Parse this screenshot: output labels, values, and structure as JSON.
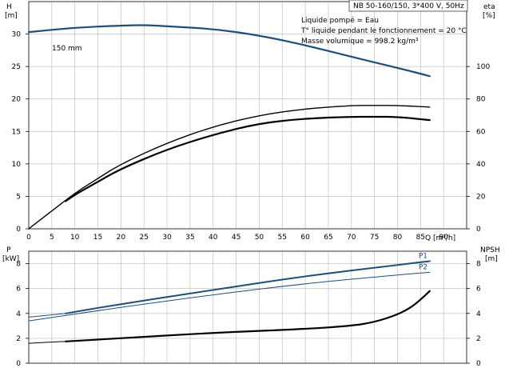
{
  "chart_data": [
    {
      "type": "line",
      "title": "NB 50-160/150, 3*400 V, 50Hz",
      "info": [
        "Liquide pompé = Eau",
        "T° liquide pendant le fonctionnement = 20 °C",
        "Masse volumique = 998.2 kg/m³"
      ],
      "y_left_label": [
        "H",
        "[m]"
      ],
      "y_right_label": [
        "eta",
        "[%]"
      ],
      "x_label": "Q [m³/h]",
      "xlim": [
        0,
        95
      ],
      "x_ticks": [
        "0",
        "5",
        "10",
        "15",
        "20",
        "25",
        "30",
        "35",
        "40",
        "45",
        "50",
        "55",
        "60",
        "65",
        "70",
        "75",
        "80",
        "85",
        "90"
      ],
      "ylim_left": [
        0,
        35
      ],
      "y_ticks_left": [
        "0",
        "5",
        "10",
        "15",
        "20",
        "25",
        "30"
      ],
      "ylim_right": [
        0,
        140
      ],
      "y_ticks_right": [
        "0",
        "20",
        "40",
        "60",
        "80",
        "100"
      ],
      "annotation": "150 mm",
      "series": [
        {
          "name": "H",
          "axis": "left",
          "color": "#1f4e79",
          "width": 2.2,
          "x": [
            0,
            10,
            20,
            25,
            30,
            40,
            50,
            60,
            70,
            80,
            87
          ],
          "y": [
            30.3,
            31.0,
            31.3,
            31.4,
            31.2,
            30.8,
            29.8,
            28.3,
            26.5,
            24.8,
            23.5
          ]
        },
        {
          "axis": "right",
          "color": "#000000",
          "width": 1.4,
          "x": [
            0,
            5,
            10,
            15,
            20,
            30,
            40,
            50,
            60,
            70,
            75,
            80,
            87
          ],
          "y": [
            0,
            11,
            22,
            31,
            40,
            53,
            63,
            70,
            74,
            76,
            76,
            76,
            75
          ]
        },
        {
          "axis": "right",
          "color": "#000000",
          "width": 2.2,
          "x": [
            8,
            10,
            15,
            20,
            30,
            40,
            50,
            60,
            70,
            75,
            80,
            87
          ],
          "y": [
            17,
            21,
            29,
            37,
            49,
            58,
            65,
            68,
            69,
            69,
            69,
            67
          ]
        }
      ]
    },
    {
      "type": "line",
      "y_left_label": [
        "P",
        "[kW]"
      ],
      "y_right_label": [
        "NPSH",
        "[m]"
      ],
      "xlim": [
        0,
        95
      ],
      "ylim_left": [
        0,
        9
      ],
      "y_ticks_left": [
        "0",
        "2",
        "4",
        "6",
        "8"
      ],
      "ylim_right": [
        0,
        9
      ],
      "y_ticks_right": [
        "0",
        "2",
        "4",
        "6",
        "8"
      ],
      "series": [
        {
          "name": "P1",
          "axis": "left",
          "color": "#1f4e79",
          "width": 2.0,
          "x": [
            8,
            20,
            40,
            60,
            80,
            87
          ],
          "y": [
            4.0,
            4.75,
            5.9,
            7.0,
            7.9,
            8.2
          ]
        },
        {
          "name": "P2",
          "axis": "left",
          "color": "#1f4e79",
          "width": 1.0,
          "x": [
            0,
            20,
            40,
            60,
            80,
            87
          ],
          "y": [
            3.4,
            4.5,
            5.5,
            6.4,
            7.1,
            7.3
          ]
        },
        {
          "axis": "left",
          "color": "#1f4e79",
          "width": 1.0,
          "x": [
            0,
            8
          ],
          "y": [
            3.7,
            4.0
          ]
        },
        {
          "axis": "right",
          "color": "#000000",
          "width": 1.0,
          "x": [
            0,
            8
          ],
          "y": [
            1.6,
            1.75
          ]
        },
        {
          "name": "NPSH",
          "axis": "right",
          "color": "#000000",
          "width": 2.2,
          "x": [
            8,
            20,
            40,
            60,
            70,
            75,
            80,
            83,
            85,
            87
          ],
          "y": [
            1.75,
            2.0,
            2.45,
            2.75,
            3.0,
            3.3,
            3.9,
            4.5,
            5.1,
            5.8
          ]
        }
      ]
    }
  ]
}
